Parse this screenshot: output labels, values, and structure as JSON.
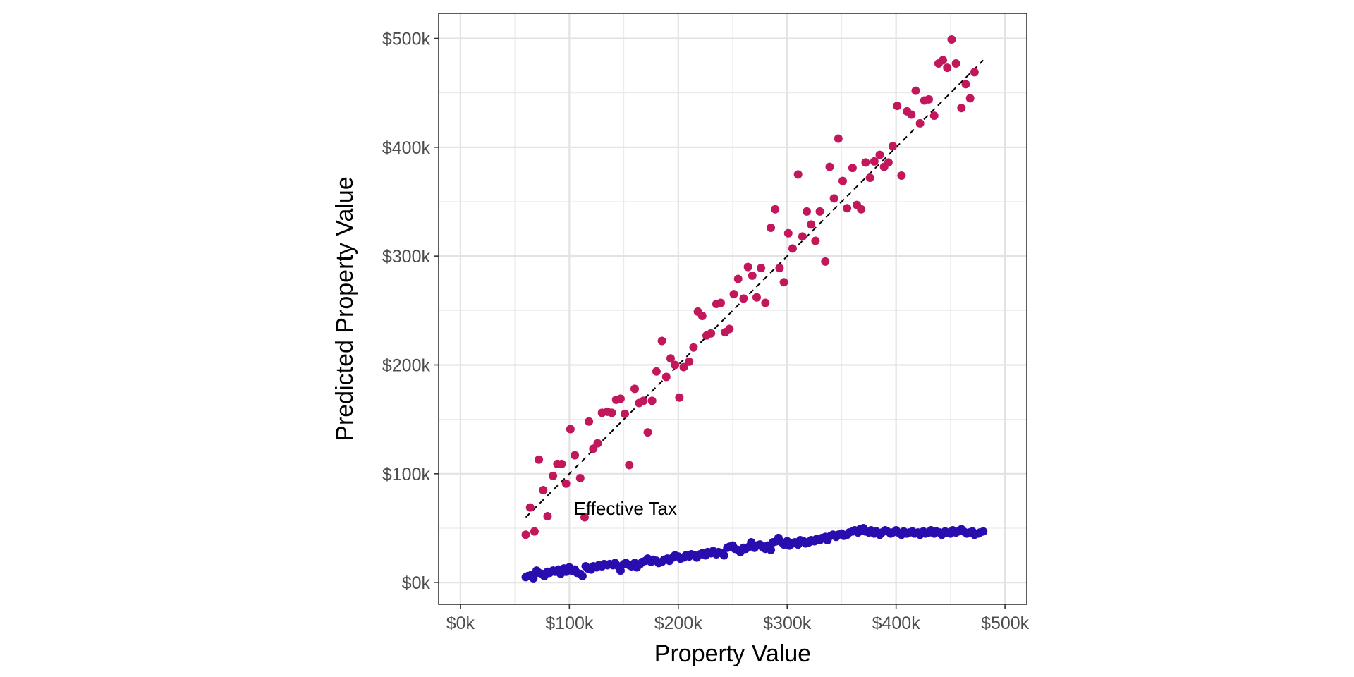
{
  "chart_data": {
    "type": "scatter",
    "title": "",
    "xlabel": "Property Value",
    "ylabel": "Predicted Property Value",
    "xlim": [
      -20000,
      520000
    ],
    "ylim": [
      -20000,
      523000
    ],
    "x_ticks": [
      0,
      100000,
      200000,
      300000,
      400000,
      500000
    ],
    "x_tick_labels": [
      "$0k",
      "$100k",
      "$200k",
      "$300k",
      "$400k",
      "$500k"
    ],
    "y_ticks": [
      0,
      100000,
      200000,
      300000,
      400000,
      500000
    ],
    "y_tick_labels": [
      "$0k",
      "$100k",
      "$200k",
      "$300k",
      "$400k",
      "$500k"
    ],
    "grid": true,
    "legend": "none",
    "annotations": [
      {
        "text": "Effective Tax",
        "x": 200000,
        "y": 68000
      }
    ],
    "reference_line": {
      "style": "dashed",
      "color": "#000000",
      "x": [
        60000,
        480000
      ],
      "y": [
        60000,
        480000
      ]
    },
    "series": [
      {
        "color": "#C2185B",
        "points": [
          [
            60000,
            44000
          ],
          [
            64000,
            69000
          ],
          [
            68000,
            47000
          ],
          [
            72000,
            113000
          ],
          [
            76000,
            85000
          ],
          [
            80000,
            61000
          ],
          [
            85000,
            98000
          ],
          [
            89000,
            109000
          ],
          [
            93000,
            109000
          ],
          [
            97000,
            91000
          ],
          [
            101000,
            141000
          ],
          [
            105000,
            117000
          ],
          [
            110000,
            96000
          ],
          [
            114000,
            60000
          ],
          [
            118000,
            148000
          ],
          [
            122000,
            123000
          ],
          [
            126000,
            128000
          ],
          [
            130000,
            156000
          ],
          [
            135000,
            157000
          ],
          [
            139000,
            156000
          ],
          [
            143000,
            168000
          ],
          [
            147000,
            169000
          ],
          [
            151000,
            155000
          ],
          [
            155000,
            108000
          ],
          [
            160000,
            178000
          ],
          [
            164000,
            165000
          ],
          [
            168000,
            167000
          ],
          [
            172000,
            138000
          ],
          [
            176000,
            167000
          ],
          [
            180000,
            194000
          ],
          [
            185000,
            222000
          ],
          [
            189000,
            189000
          ],
          [
            193000,
            206000
          ],
          [
            197000,
            200000
          ],
          [
            201000,
            170000
          ],
          [
            205000,
            198000
          ],
          [
            210000,
            203000
          ],
          [
            214000,
            216000
          ],
          [
            218000,
            249000
          ],
          [
            222000,
            245000
          ],
          [
            226000,
            227000
          ],
          [
            230000,
            229000
          ],
          [
            235000,
            256000
          ],
          [
            239000,
            257000
          ],
          [
            243000,
            230000
          ],
          [
            247000,
            233000
          ],
          [
            251000,
            265000
          ],
          [
            255000,
            279000
          ],
          [
            260000,
            261000
          ],
          [
            264000,
            290000
          ],
          [
            268000,
            282000
          ],
          [
            272000,
            262000
          ],
          [
            276000,
            289000
          ],
          [
            280000,
            257000
          ],
          [
            285000,
            326000
          ],
          [
            289000,
            343000
          ],
          [
            293000,
            289000
          ],
          [
            297000,
            276000
          ],
          [
            301000,
            321000
          ],
          [
            305000,
            307000
          ],
          [
            310000,
            375000
          ],
          [
            314000,
            318000
          ],
          [
            318000,
            341000
          ],
          [
            322000,
            329000
          ],
          [
            326000,
            314000
          ],
          [
            330000,
            341000
          ],
          [
            335000,
            295000
          ],
          [
            339000,
            382000
          ],
          [
            343000,
            353000
          ],
          [
            347000,
            408000
          ],
          [
            351000,
            369000
          ],
          [
            355000,
            344000
          ],
          [
            360000,
            381000
          ],
          [
            364000,
            347000
          ],
          [
            368000,
            343000
          ],
          [
            372000,
            386000
          ],
          [
            376000,
            372000
          ],
          [
            380000,
            387000
          ],
          [
            385000,
            393000
          ],
          [
            389000,
            382000
          ],
          [
            393000,
            386000
          ],
          [
            397000,
            401000
          ],
          [
            401000,
            438000
          ],
          [
            405000,
            374000
          ],
          [
            410000,
            433000
          ],
          [
            414000,
            430000
          ],
          [
            418000,
            452000
          ],
          [
            422000,
            422000
          ],
          [
            426000,
            443000
          ],
          [
            430000,
            444000
          ],
          [
            435000,
            429000
          ],
          [
            439000,
            477000
          ],
          [
            443000,
            480000
          ],
          [
            447000,
            473000
          ],
          [
            451000,
            499000
          ],
          [
            455000,
            477000
          ],
          [
            460000,
            436000
          ],
          [
            464000,
            458000
          ],
          [
            468000,
            445000
          ],
          [
            472000,
            469000
          ]
        ]
      },
      {
        "color": "#2A0DAF",
        "points": [
          [
            60000,
            5000
          ],
          [
            62000,
            6000
          ],
          [
            65000,
            7000
          ],
          [
            67000,
            4000
          ],
          [
            70000,
            11000
          ],
          [
            72000,
            9000
          ],
          [
            75000,
            8000
          ],
          [
            77000,
            6000
          ],
          [
            80000,
            10000
          ],
          [
            82000,
            9000
          ],
          [
            85000,
            11000
          ],
          [
            87000,
            10000
          ],
          [
            90000,
            12000
          ],
          [
            92000,
            8000
          ],
          [
            95000,
            13000
          ],
          [
            97000,
            10000
          ],
          [
            100000,
            14000
          ],
          [
            102000,
            11000
          ],
          [
            105000,
            12000
          ],
          [
            107000,
            9000
          ],
          [
            110000,
            8000
          ],
          [
            112000,
            6000
          ],
          [
            115000,
            15000
          ],
          [
            117000,
            13000
          ],
          [
            120000,
            12000
          ],
          [
            122000,
            15000
          ],
          [
            125000,
            14000
          ],
          [
            127000,
            16000
          ],
          [
            130000,
            15000
          ],
          [
            132000,
            17000
          ],
          [
            135000,
            16000
          ],
          [
            137000,
            17000
          ],
          [
            140000,
            16000
          ],
          [
            142000,
            18000
          ],
          [
            145000,
            15000
          ],
          [
            147000,
            11000
          ],
          [
            150000,
            17000
          ],
          [
            152000,
            18000
          ],
          [
            155000,
            16000
          ],
          [
            157000,
            15000
          ],
          [
            160000,
            18000
          ],
          [
            162000,
            14000
          ],
          [
            165000,
            17000
          ],
          [
            167000,
            19000
          ],
          [
            170000,
            20000
          ],
          [
            172000,
            22000
          ],
          [
            175000,
            19000
          ],
          [
            177000,
            21000
          ],
          [
            180000,
            20000
          ],
          [
            182000,
            18000
          ],
          [
            185000,
            19000
          ],
          [
            187000,
            21000
          ],
          [
            190000,
            22000
          ],
          [
            192000,
            20000
          ],
          [
            195000,
            23000
          ],
          [
            197000,
            25000
          ],
          [
            200000,
            24000
          ],
          [
            202000,
            22000
          ],
          [
            205000,
            23000
          ],
          [
            207000,
            25000
          ],
          [
            210000,
            24000
          ],
          [
            212000,
            26000
          ],
          [
            215000,
            25000
          ],
          [
            217000,
            23000
          ],
          [
            220000,
            26000
          ],
          [
            222000,
            27000
          ],
          [
            225000,
            25000
          ],
          [
            227000,
            28000
          ],
          [
            230000,
            27000
          ],
          [
            232000,
            29000
          ],
          [
            235000,
            26000
          ],
          [
            237000,
            28000
          ],
          [
            240000,
            27000
          ],
          [
            242000,
            25000
          ],
          [
            245000,
            32000
          ],
          [
            247000,
            33000
          ],
          [
            250000,
            34000
          ],
          [
            252000,
            31000
          ],
          [
            255000,
            30000
          ],
          [
            257000,
            28000
          ],
          [
            260000,
            32000
          ],
          [
            262000,
            31000
          ],
          [
            265000,
            33000
          ],
          [
            267000,
            37000
          ],
          [
            270000,
            32000
          ],
          [
            272000,
            34000
          ],
          [
            275000,
            35000
          ],
          [
            277000,
            33000
          ],
          [
            280000,
            31000
          ],
          [
            282000,
            34000
          ],
          [
            285000,
            30000
          ],
          [
            287000,
            37000
          ],
          [
            290000,
            38000
          ],
          [
            292000,
            41000
          ],
          [
            295000,
            37000
          ],
          [
            297000,
            35000
          ],
          [
            300000,
            38000
          ],
          [
            302000,
            34000
          ],
          [
            305000,
            36000
          ],
          [
            307000,
            37000
          ],
          [
            310000,
            35000
          ],
          [
            312000,
            39000
          ],
          [
            315000,
            38000
          ],
          [
            317000,
            36000
          ],
          [
            320000,
            37000
          ],
          [
            322000,
            39000
          ],
          [
            325000,
            38000
          ],
          [
            327000,
            40000
          ],
          [
            330000,
            39000
          ],
          [
            332000,
            41000
          ],
          [
            335000,
            42000
          ],
          [
            337000,
            39000
          ],
          [
            340000,
            43000
          ],
          [
            342000,
            44000
          ],
          [
            345000,
            42000
          ],
          [
            347000,
            44000
          ],
          [
            350000,
            45000
          ],
          [
            352000,
            43000
          ],
          [
            355000,
            44000
          ],
          [
            357000,
            46000
          ],
          [
            360000,
            47000
          ],
          [
            362000,
            48000
          ],
          [
            365000,
            46000
          ],
          [
            367000,
            49000
          ],
          [
            370000,
            50000
          ],
          [
            372000,
            47000
          ],
          [
            375000,
            46000
          ],
          [
            377000,
            48000
          ],
          [
            380000,
            45000
          ],
          [
            382000,
            47000
          ],
          [
            385000,
            44000
          ],
          [
            387000,
            46000
          ],
          [
            390000,
            48000
          ],
          [
            392000,
            47000
          ],
          [
            395000,
            45000
          ],
          [
            397000,
            46000
          ],
          [
            400000,
            48000
          ],
          [
            402000,
            46000
          ],
          [
            405000,
            44000
          ],
          [
            407000,
            47000
          ],
          [
            410000,
            45000
          ],
          [
            412000,
            46000
          ],
          [
            415000,
            47000
          ],
          [
            417000,
            45000
          ],
          [
            420000,
            46000
          ],
          [
            422000,
            44000
          ],
          [
            425000,
            47000
          ],
          [
            427000,
            45000
          ],
          [
            430000,
            46000
          ],
          [
            432000,
            48000
          ],
          [
            435000,
            45000
          ],
          [
            437000,
            47000
          ],
          [
            440000,
            46000
          ],
          [
            442000,
            44000
          ],
          [
            445000,
            47000
          ],
          [
            447000,
            46000
          ],
          [
            450000,
            45000
          ],
          [
            452000,
            48000
          ],
          [
            455000,
            46000
          ],
          [
            457000,
            47000
          ],
          [
            460000,
            49000
          ],
          [
            462000,
            47000
          ],
          [
            465000,
            45000
          ],
          [
            467000,
            46000
          ],
          [
            470000,
            47000
          ],
          [
            472000,
            44000
          ],
          [
            475000,
            45000
          ],
          [
            477000,
            46000
          ],
          [
            480000,
            47000
          ]
        ]
      }
    ]
  }
}
